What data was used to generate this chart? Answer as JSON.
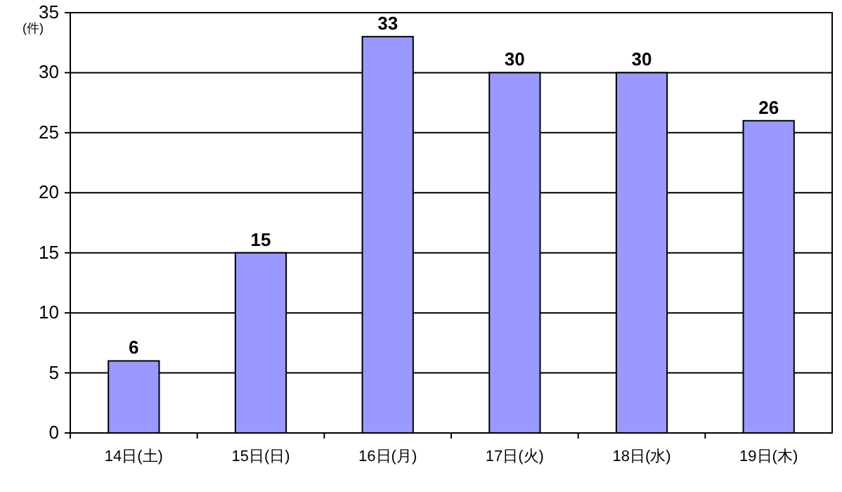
{
  "chart_data": {
    "type": "bar",
    "ylabel": "(件)",
    "categories": [
      "14日(土)",
      "15日(日)",
      "16日(月)",
      "17日(火)",
      "18日(水)",
      "19日(木)"
    ],
    "values": [
      6,
      15,
      33,
      30,
      30,
      26
    ],
    "color": "#9999ff",
    "ylim": [
      0,
      35
    ],
    "yticks": [
      0,
      5,
      10,
      15,
      20,
      25,
      30,
      35
    ],
    "grid": "y",
    "data_labels": true
  }
}
